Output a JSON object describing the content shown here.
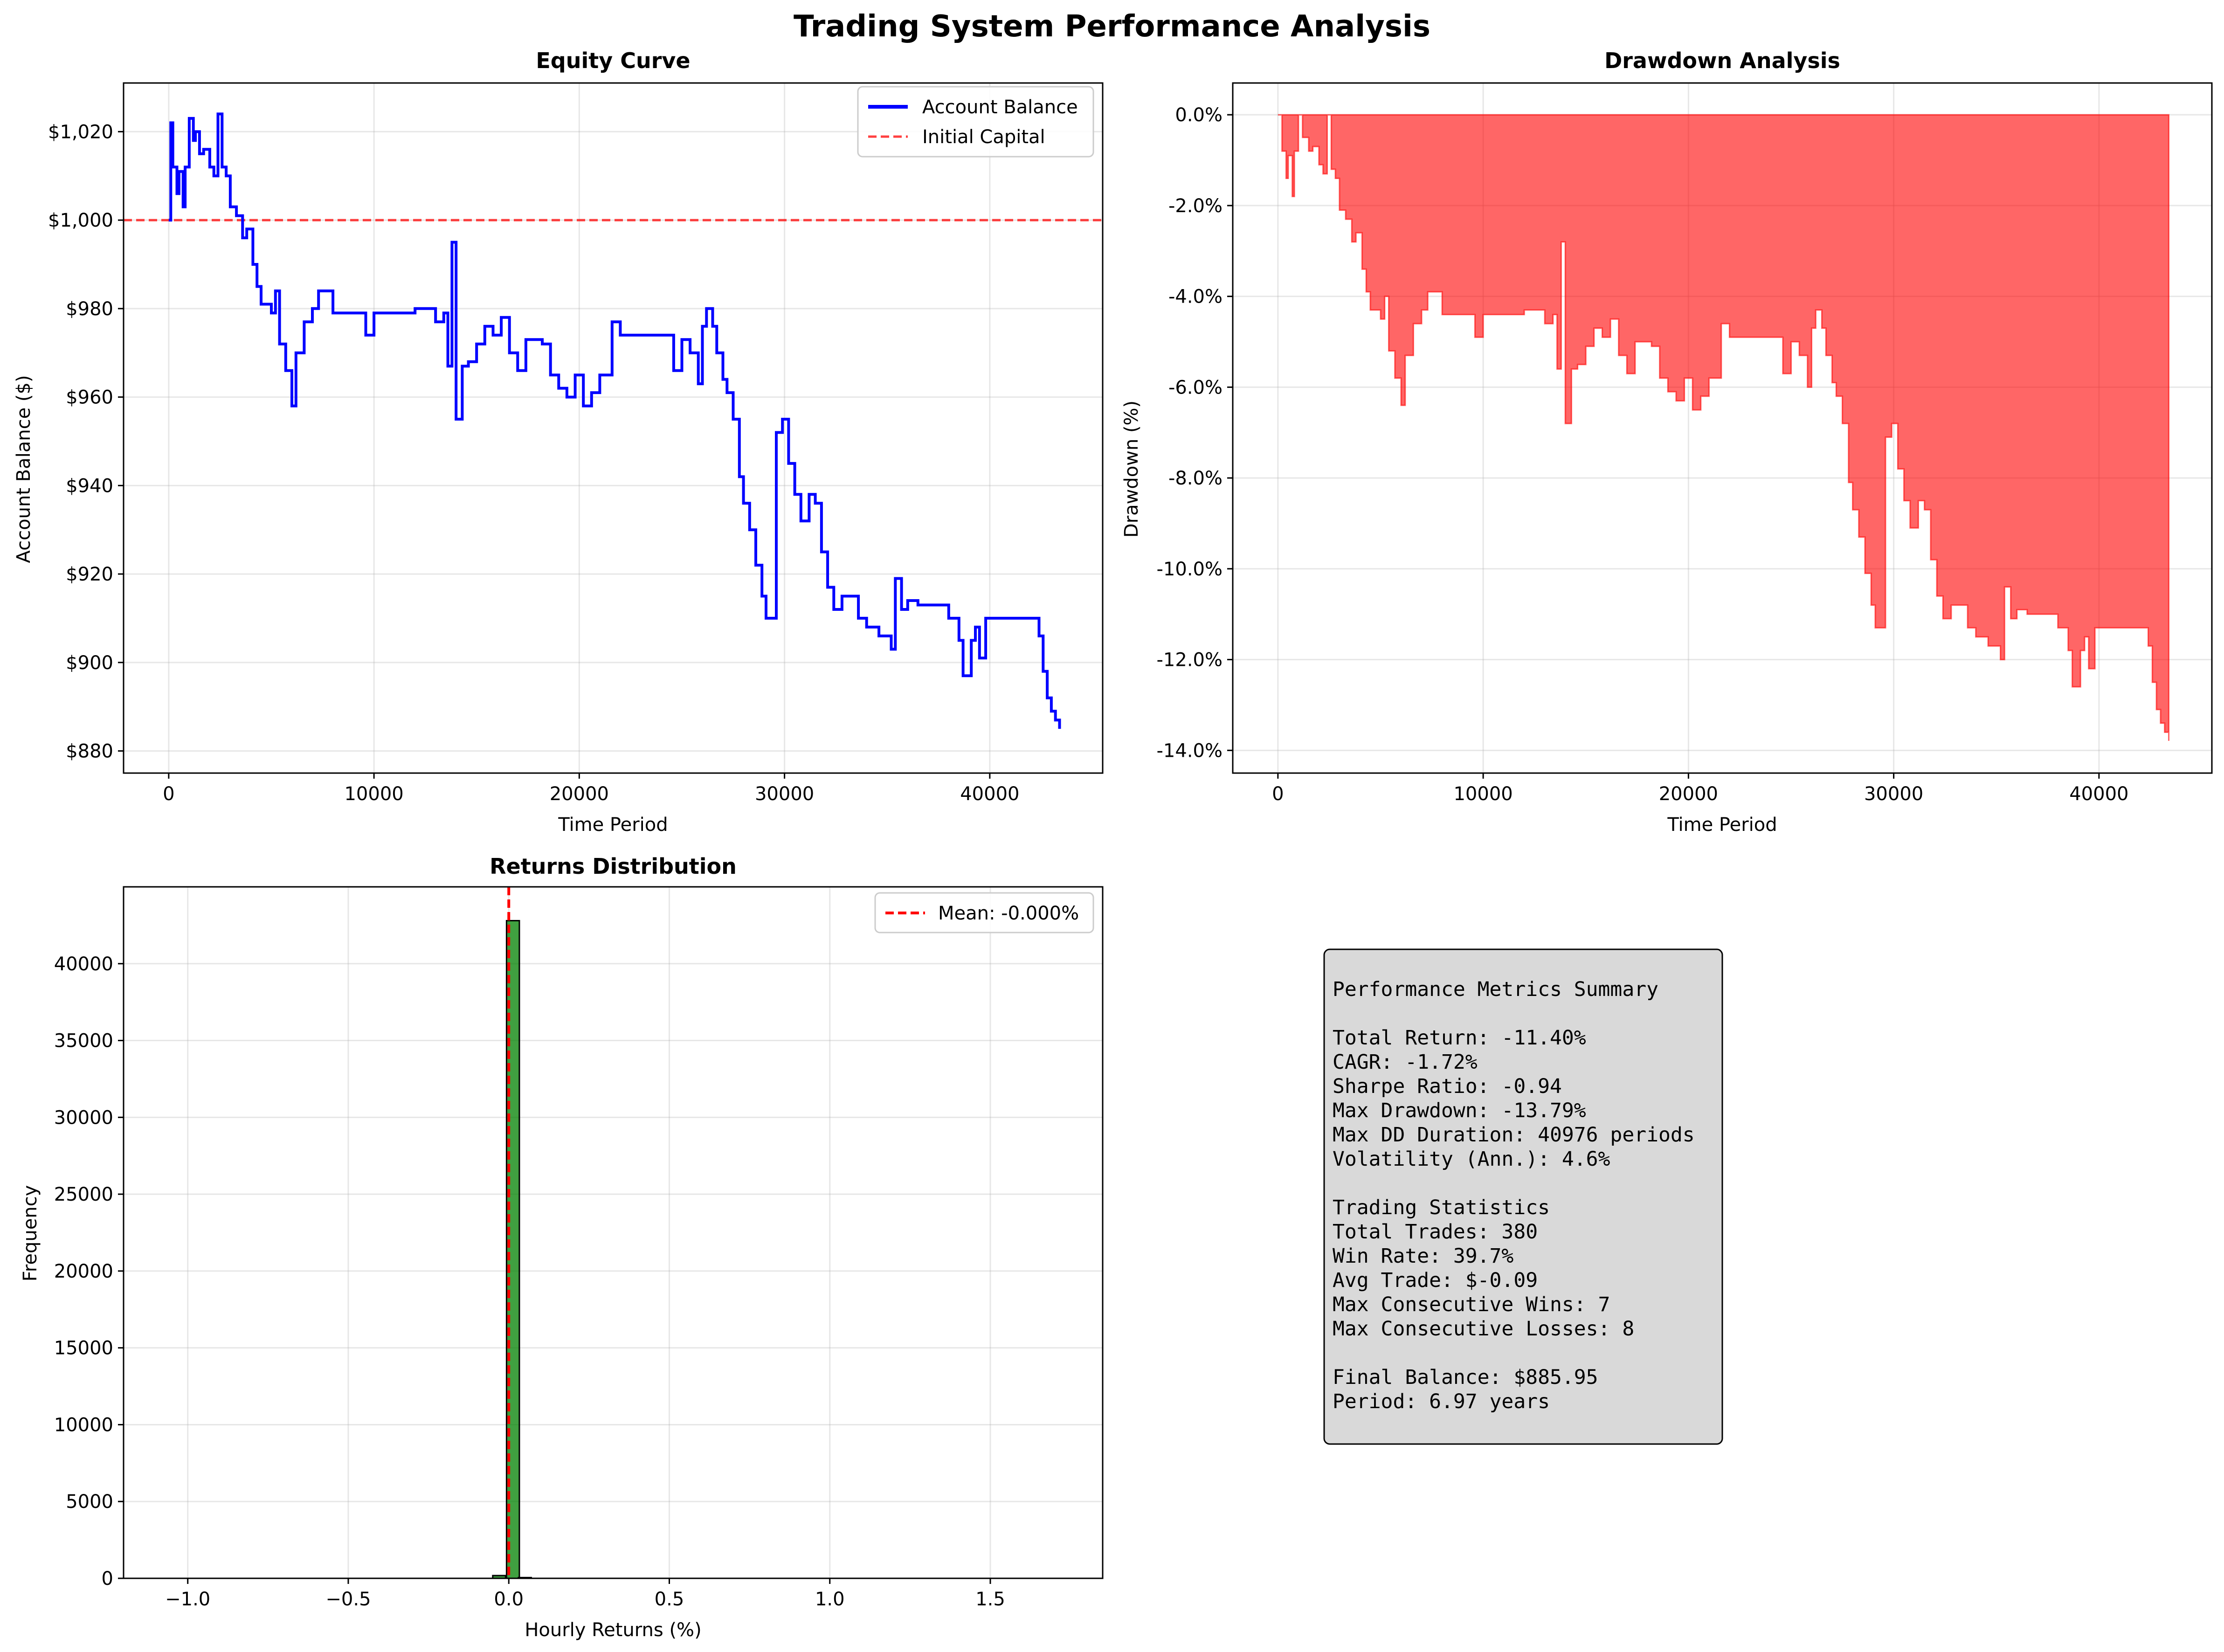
{
  "figure_title": "Trading System Performance Analysis",
  "chart_data": [
    {
      "id": "equity",
      "type": "line",
      "title": "Equity Curve",
      "xlabel": "Time Period",
      "ylabel": "Account Balance ($)",
      "xlim": [
        -2200,
        45500
      ],
      "ylim": [
        875,
        1031
      ],
      "xticks": [
        0,
        10000,
        20000,
        30000,
        40000
      ],
      "xtick_labels": [
        "0",
        "10000",
        "20000",
        "30000",
        "40000"
      ],
      "yticks": [
        880,
        900,
        920,
        940,
        960,
        980,
        1000,
        1020
      ],
      "ytick_labels": [
        "$880",
        "$900",
        "$920",
        "$940",
        "$960",
        "$980",
        "$1,000",
        "$1,020"
      ],
      "grid": true,
      "legend": "top-right",
      "reference_line": {
        "name": "Initial Capital",
        "y": 1000,
        "color": "#ff0000",
        "style": "dashed"
      },
      "series": [
        {
          "name": "Account Balance",
          "color": "#0000ff",
          "x": [
            0,
            100,
            200,
            400,
            500,
            700,
            800,
            1000,
            1200,
            1300,
            1500,
            1700,
            2000,
            2200,
            2400,
            2600,
            2800,
            3000,
            3300,
            3600,
            3800,
            4100,
            4300,
            4500,
            5000,
            5200,
            5400,
            5700,
            6000,
            6200,
            6600,
            7000,
            7300,
            8000,
            9000,
            9600,
            10000,
            11000,
            11500,
            12000,
            12400,
            13000,
            13400,
            13600,
            13800,
            14000,
            14300,
            14600,
            15000,
            15400,
            15800,
            16200,
            16600,
            17000,
            17400,
            17800,
            18200,
            18600,
            19000,
            19400,
            19800,
            20200,
            20600,
            21000,
            21600,
            22000,
            23000,
            23500,
            24000,
            24600,
            25000,
            25400,
            25800,
            26000,
            26200,
            26500,
            26700,
            27000,
            27200,
            27500,
            27800,
            28000,
            28300,
            28600,
            28900,
            29100,
            29300,
            29600,
            29900,
            30200,
            30500,
            30800,
            31200,
            31500,
            31800,
            32100,
            32400,
            32800,
            33600,
            34000,
            34600,
            35200,
            35400,
            35700,
            36000,
            36500,
            37000,
            37500,
            38000,
            38500,
            38700,
            39100,
            39300,
            39500,
            39800,
            40000,
            40500,
            41000,
            41500,
            42000,
            42200,
            42400,
            42600,
            42800,
            43000,
            43200,
            43400
          ],
          "y": [
            1000,
            1022,
            1012,
            1006,
            1011,
            1003,
            1012,
            1023,
            1018,
            1020,
            1015,
            1016,
            1012,
            1010,
            1024,
            1012,
            1010,
            1003,
            1001,
            996,
            998,
            990,
            985,
            981,
            979,
            984,
            972,
            966,
            958,
            970,
            977,
            980,
            984,
            979,
            979,
            974,
            979,
            979,
            979,
            980,
            980,
            977,
            979,
            967,
            995,
            955,
            967,
            968,
            972,
            976,
            974,
            978,
            970,
            966,
            973,
            973,
            972,
            965,
            962,
            960,
            965,
            958,
            961,
            965,
            977,
            974,
            974,
            974,
            974,
            966,
            973,
            970,
            963,
            976,
            980,
            976,
            970,
            964,
            961,
            955,
            942,
            936,
            930,
            922,
            915,
            910,
            910,
            952,
            955,
            945,
            938,
            932,
            938,
            936,
            925,
            917,
            912,
            915,
            910,
            908,
            906,
            903,
            919,
            912,
            914,
            913,
            913,
            913,
            910,
            905,
            897,
            905,
            908,
            901,
            910,
            910,
            910,
            910,
            910,
            910,
            910,
            906,
            898,
            892,
            889,
            887,
            885
          ]
        }
      ]
    },
    {
      "id": "drawdown",
      "type": "area",
      "title": "Drawdown Analysis",
      "xlabel": "Time Period",
      "ylabel": "Drawdown (%)",
      "xlim": [
        -2200,
        45500
      ],
      "ylim": [
        -14.5,
        0.7
      ],
      "xticks": [
        0,
        10000,
        20000,
        30000,
        40000
      ],
      "xtick_labels": [
        "0",
        "10000",
        "20000",
        "30000",
        "40000"
      ],
      "yticks": [
        0,
        -2,
        -4,
        -6,
        -8,
        -10,
        -12,
        -14
      ],
      "ytick_labels": [
        "0.0%",
        "-2.0%",
        "-4.0%",
        "-6.0%",
        "-8.0%",
        "-10.0%",
        "-12.0%",
        "-14.0%"
      ],
      "grid": true,
      "series": [
        {
          "name": "Drawdown",
          "color": "#ff0000",
          "x": [
            0,
            100,
            200,
            400,
            500,
            700,
            800,
            1000,
            1200,
            1500,
            1700,
            2000,
            2200,
            2400,
            2600,
            2800,
            3000,
            3300,
            3600,
            3800,
            4100,
            4300,
            4500,
            5000,
            5200,
            5400,
            5700,
            6000,
            6200,
            6600,
            7000,
            7300,
            8000,
            9000,
            9600,
            10000,
            11000,
            12000,
            12400,
            13000,
            13400,
            13600,
            13800,
            14000,
            14300,
            14600,
            15000,
            15400,
            15800,
            16200,
            16600,
            17000,
            17400,
            17800,
            18200,
            18600,
            19000,
            19400,
            19800,
            20200,
            20600,
            21000,
            21600,
            22000,
            23000,
            24000,
            24600,
            25000,
            25400,
            25800,
            26000,
            26200,
            26500,
            26700,
            27000,
            27200,
            27500,
            27800,
            28000,
            28300,
            28600,
            28900,
            29100,
            29300,
            29600,
            29900,
            30200,
            30500,
            30800,
            31200,
            31500,
            31800,
            32100,
            32400,
            32800,
            33600,
            34000,
            34600,
            35200,
            35400,
            35700,
            36000,
            36500,
            37000,
            37500,
            38000,
            38500,
            38700,
            39100,
            39300,
            39500,
            39800,
            40000,
            40500,
            41000,
            41500,
            42000,
            42200,
            42400,
            42600,
            42800,
            43000,
            43200,
            43400
          ],
          "y": [
            0,
            0,
            -0.8,
            -1.4,
            -0.9,
            -1.8,
            -0.8,
            0,
            -0.5,
            -0.8,
            -0.7,
            -1.1,
            -1.3,
            0,
            -1.2,
            -1.4,
            -2.1,
            -2.3,
            -2.8,
            -2.6,
            -3.4,
            -3.9,
            -4.3,
            -4.5,
            -4.0,
            -5.2,
            -5.8,
            -6.4,
            -5.3,
            -4.6,
            -4.3,
            -3.9,
            -4.4,
            -4.4,
            -4.9,
            -4.4,
            -4.4,
            -4.3,
            -4.3,
            -4.6,
            -4.4,
            -5.6,
            -2.8,
            -6.8,
            -5.6,
            -5.5,
            -5.1,
            -4.7,
            -4.9,
            -4.5,
            -5.3,
            -5.7,
            -5.0,
            -5.0,
            -5.1,
            -5.8,
            -6.1,
            -6.3,
            -5.8,
            -6.5,
            -6.2,
            -5.8,
            -4.6,
            -4.9,
            -4.9,
            -4.9,
            -5.7,
            -5.0,
            -5.3,
            -6.0,
            -4.7,
            -4.3,
            -4.7,
            -5.3,
            -5.9,
            -6.2,
            -6.8,
            -8.1,
            -8.7,
            -9.3,
            -10.1,
            -10.8,
            -11.3,
            -11.3,
            -7.1,
            -6.8,
            -7.8,
            -8.5,
            -9.1,
            -8.5,
            -8.7,
            -9.8,
            -10.6,
            -11.1,
            -10.8,
            -11.3,
            -11.5,
            -11.7,
            -12.0,
            -10.4,
            -11.1,
            -10.9,
            -11.0,
            -11.0,
            -11.0,
            -11.3,
            -11.8,
            -12.6,
            -11.8,
            -11.5,
            -12.2,
            -11.3,
            -11.3,
            -11.3,
            -11.3,
            -11.3,
            -11.3,
            -11.3,
            -11.7,
            -12.5,
            -13.1,
            -13.4,
            -13.6,
            -13.79
          ]
        }
      ]
    },
    {
      "id": "returns",
      "type": "bar",
      "title": "Returns Distribution",
      "xlabel": "Hourly Returns (%)",
      "ylabel": "Frequency",
      "xlim": [
        -1.2,
        1.85
      ],
      "ylim": [
        0,
        45000
      ],
      "xticks": [
        -1.0,
        -0.5,
        0.0,
        0.5,
        1.0,
        1.5
      ],
      "xtick_labels": [
        "−1.0",
        "−0.5",
        "0.0",
        "0.5",
        "1.0",
        "1.5"
      ],
      "yticks": [
        0,
        5000,
        10000,
        15000,
        20000,
        25000,
        30000,
        35000,
        40000
      ],
      "ytick_labels": [
        "0",
        "5000",
        "10000",
        "15000",
        "20000",
        "25000",
        "30000",
        "35000",
        "40000"
      ],
      "grid": true,
      "legend": "top-right",
      "bar_color": "#008000",
      "bin_left_edges": [
        -0.05,
        -0.007,
        0.03
      ],
      "bin_width": 0.04,
      "counts": [
        180,
        42800,
        50
      ],
      "mean_line": {
        "name": "Mean: -0.000%",
        "x": 0.0,
        "color": "#ff0000",
        "style": "dashed"
      }
    }
  ],
  "summary": {
    "lines": [
      "Performance Metrics Summary",
      "",
      "Total Return: -11.40%",
      "CAGR: -1.72%",
      "Sharpe Ratio: -0.94",
      "Max Drawdown: -13.79%",
      "Max DD Duration: 40976 periods",
      "Volatility (Ann.): 4.6%",
      "",
      "Trading Statistics",
      "Total Trades: 380",
      "Win Rate: 39.7%",
      "Avg Trade: $-0.09",
      "Max Consecutive Wins: 7",
      "Max Consecutive Losses: 8",
      "",
      "Final Balance: $885.95",
      "Period: 6.97 years"
    ],
    "box_color": "#d9d9d9"
  }
}
